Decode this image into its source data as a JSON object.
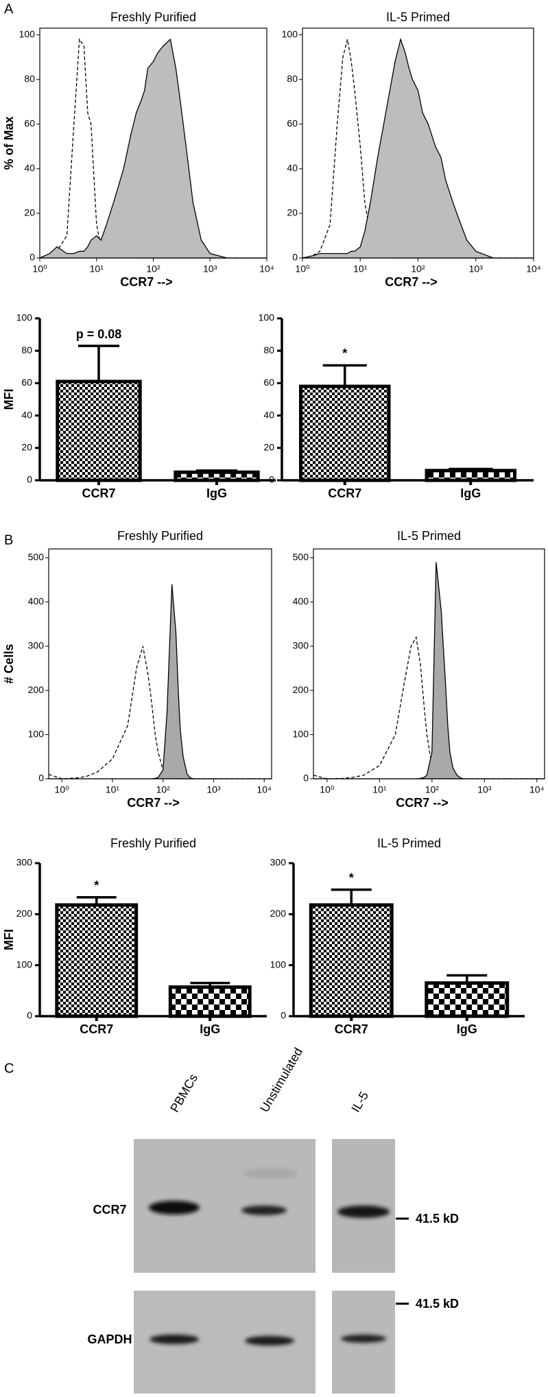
{
  "panel_labels": [
    "A",
    "B",
    "C"
  ],
  "chart_data": [
    {
      "type": "histogram",
      "title": "Freshly Purified",
      "y_label": "% of Max",
      "x_label": "CCR7 -->",
      "log_x": true,
      "x": [
        1,
        1.5,
        2,
        3,
        4,
        5,
        6,
        7,
        8,
        10,
        12,
        15,
        20,
        30,
        40,
        50,
        60,
        70,
        80,
        100,
        120,
        150,
        200,
        250,
        300,
        400,
        500,
        700,
        1000,
        2000,
        10000
      ],
      "series": [
        {
          "style": "dashed",
          "color": "#000000",
          "values": [
            0,
            1,
            3,
            10,
            60,
            98,
            95,
            65,
            60,
            15,
            5,
            2,
            1,
            1,
            1,
            0,
            0,
            0,
            0,
            0,
            0,
            0,
            0,
            0,
            0,
            0,
            0,
            0,
            0,
            0,
            0
          ]
        },
        {
          "style": "filled",
          "color": "#bdbdbd",
          "values": [
            0,
            2,
            5,
            2,
            2,
            3,
            3,
            5,
            8,
            10,
            8,
            15,
            25,
            40,
            55,
            65,
            70,
            75,
            85,
            88,
            92,
            95,
            98,
            85,
            70,
            45,
            25,
            8,
            2,
            0,
            0
          ]
        }
      ],
      "xlim": [
        1,
        10000
      ],
      "xticks": [
        {
          "value": 1,
          "label": "10⁰"
        },
        {
          "value": 10,
          "label": "10¹"
        },
        {
          "value": 100,
          "label": "10²"
        },
        {
          "value": 1000,
          "label": "10³"
        },
        {
          "value": 10000,
          "label": "10⁴"
        }
      ],
      "ylim": [
        0,
        103
      ],
      "yticks": [
        0,
        20,
        40,
        60,
        80,
        100
      ]
    },
    {
      "type": "histogram",
      "title": "IL-5 Primed",
      "x_label": "CCR7 -->",
      "log_x": true,
      "x": [
        1,
        1.5,
        2,
        3,
        4,
        5,
        6,
        7,
        8,
        10,
        12,
        15,
        20,
        30,
        40,
        50,
        60,
        70,
        80,
        100,
        120,
        150,
        200,
        250,
        300,
        400,
        500,
        700,
        1000,
        2000,
        10000
      ],
      "series": [
        {
          "style": "dashed",
          "color": "#000000",
          "values": [
            0,
            1,
            3,
            15,
            60,
            90,
            98,
            88,
            75,
            50,
            25,
            10,
            3,
            1,
            0,
            0,
            0,
            0,
            0,
            0,
            0,
            0,
            0,
            0,
            0,
            0,
            0,
            0,
            0,
            0,
            0
          ]
        },
        {
          "style": "filled",
          "color": "#bdbdbd",
          "values": [
            0,
            1,
            2,
            2,
            2,
            2,
            2,
            3,
            3,
            5,
            12,
            25,
            45,
            70,
            88,
            98,
            92,
            85,
            80,
            75,
            65,
            60,
            50,
            45,
            35,
            25,
            18,
            8,
            3,
            0,
            0
          ]
        }
      ],
      "xlim": [
        1,
        10000
      ],
      "xticks": [
        {
          "value": 1,
          "label": "10⁰"
        },
        {
          "value": 10,
          "label": "10¹"
        },
        {
          "value": 100,
          "label": "10²"
        },
        {
          "value": 1000,
          "label": "10³"
        },
        {
          "value": 10000,
          "label": "10⁴"
        }
      ],
      "ylim": [
        0,
        103
      ],
      "yticks": [
        0,
        20,
        40,
        60,
        80,
        100
      ]
    },
    {
      "type": "bar",
      "y_label": "MFI",
      "categories": [
        "CCR7",
        "IgG"
      ],
      "values": [
        61,
        5
      ],
      "errors": [
        22,
        1
      ],
      "value_annotations": [
        "p = 0.08",
        null
      ],
      "ylim": [
        0,
        100
      ],
      "yticks": [
        0,
        20,
        40,
        60,
        80,
        100
      ]
    },
    {
      "type": "bar",
      "categories": [
        "CCR7",
        "IgG"
      ],
      "values": [
        58,
        6
      ],
      "errors": [
        13,
        1
      ],
      "value_annotations": [
        "*",
        null
      ],
      "ylim": [
        0,
        100
      ],
      "yticks": [
        0,
        20,
        40,
        60,
        80,
        100
      ]
    },
    {
      "type": "histogram",
      "title": "Freshly Purified",
      "y_label": "# Cells",
      "x_label": "CCR7 -->",
      "log_x": true,
      "x": [
        0.55,
        1,
        2,
        3,
        5,
        10,
        20,
        30,
        40,
        50,
        60,
        70,
        80,
        100,
        120,
        150,
        180,
        200,
        220,
        250,
        300,
        350,
        400,
        500,
        700,
        1000,
        14000
      ],
      "series": [
        {
          "style": "dashed",
          "color": "#000000",
          "values": [
            10,
            0,
            2,
            5,
            15,
            45,
            120,
            250,
            300,
            240,
            170,
            100,
            60,
            20,
            8,
            3,
            1,
            0,
            0,
            0,
            0,
            0,
            0,
            0,
            0,
            0,
            0
          ]
        },
        {
          "style": "filled",
          "color": "#a9a9a9",
          "values": [
            0,
            0,
            0,
            0,
            0,
            0,
            0,
            0,
            0,
            0,
            0,
            1,
            3,
            20,
            150,
            440,
            330,
            200,
            110,
            50,
            10,
            2,
            0,
            0,
            0,
            0,
            0
          ]
        }
      ],
      "xlim": [
        0.55,
        14000
      ],
      "xticks": [
        {
          "value": 1,
          "label": "10⁰"
        },
        {
          "value": 10,
          "label": "10¹"
        },
        {
          "value": 100,
          "label": "10²"
        },
        {
          "value": 1000,
          "label": "10³"
        },
        {
          "value": 10000,
          "label": "10⁴"
        }
      ],
      "ylim": [
        0,
        520
      ],
      "yticks": [
        0,
        100,
        200,
        300,
        400,
        500
      ]
    },
    {
      "type": "histogram",
      "title": "IL-5 Primed",
      "x_label": "CCR7 -->",
      "log_x": true,
      "x": [
        0.55,
        1,
        2,
        3,
        5,
        10,
        20,
        30,
        40,
        50,
        60,
        70,
        80,
        100,
        120,
        150,
        180,
        200,
        220,
        250,
        300,
        350,
        400,
        500,
        700,
        1000,
        14000
      ],
      "series": [
        {
          "style": "dashed",
          "color": "#000000",
          "values": [
            8,
            0,
            1,
            3,
            8,
            30,
            100,
            220,
            300,
            320,
            260,
            170,
            100,
            30,
            8,
            2,
            0,
            0,
            0,
            0,
            0,
            0,
            0,
            0,
            0,
            0,
            0
          ]
        },
        {
          "style": "filled",
          "color": "#a9a9a9",
          "values": [
            0,
            0,
            0,
            0,
            0,
            0,
            0,
            0,
            0,
            0,
            1,
            3,
            8,
            60,
            490,
            380,
            220,
            120,
            60,
            25,
            8,
            2,
            0,
            0,
            0,
            0,
            0
          ]
        }
      ],
      "xlim": [
        0.55,
        14000
      ],
      "xticks": [
        {
          "value": 1,
          "label": "10⁰"
        },
        {
          "value": 10,
          "label": "10¹"
        },
        {
          "value": 100,
          "label": "10²"
        },
        {
          "value": 1000,
          "label": "10³"
        },
        {
          "value": 10000,
          "label": "10⁴"
        }
      ],
      "ylim": [
        0,
        520
      ],
      "yticks": [
        0,
        100,
        200,
        300,
        400,
        500
      ]
    },
    {
      "type": "bar",
      "title": "Freshly Purified",
      "y_label": "MFI",
      "categories": [
        "CCR7",
        "IgG"
      ],
      "values": [
        218,
        57
      ],
      "errors": [
        15,
        8
      ],
      "value_annotations": [
        "*",
        null
      ],
      "ylim": [
        0,
        300
      ],
      "yticks": [
        0,
        100,
        200,
        300
      ]
    },
    {
      "type": "bar",
      "title": "IL-5 Primed",
      "categories": [
        "CCR7",
        "IgG"
      ],
      "values": [
        218,
        65
      ],
      "errors": [
        30,
        15
      ],
      "value_annotations": [
        "*",
        null
      ],
      "ylim": [
        0,
        300
      ],
      "yticks": [
        0,
        100,
        200,
        300
      ]
    }
  ],
  "blot": {
    "lanes": [
      "PBMCs",
      "Unstimulated",
      "IL-5"
    ],
    "rows": [
      "CCR7",
      "GAPDH"
    ],
    "markers": [
      "41.5 kD",
      "41.5 kD"
    ]
  }
}
